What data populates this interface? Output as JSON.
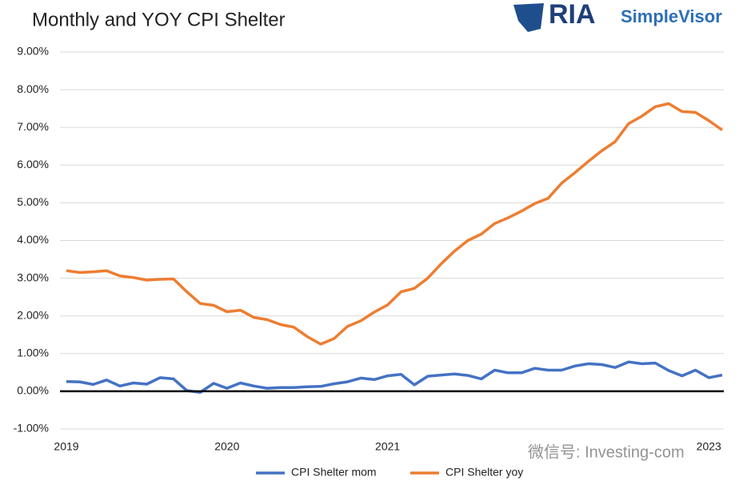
{
  "chart_data": {
    "type": "line",
    "title": "Monthly and YOY CPI Shelter",
    "logo": {
      "mark": "RIA",
      "name": "SimpleVisor"
    },
    "watermark": "微信号: Investing-com",
    "categories": [
      "2019",
      null,
      null,
      null,
      null,
      null,
      null,
      null,
      null,
      null,
      null,
      null,
      "2020",
      null,
      null,
      null,
      null,
      null,
      null,
      null,
      null,
      null,
      null,
      null,
      "2021",
      null,
      null,
      null,
      null,
      null,
      null,
      null,
      null,
      null,
      null,
      null,
      null,
      null,
      null,
      null,
      null,
      null,
      null,
      null,
      null,
      null,
      null,
      null,
      "2023",
      null
    ],
    "series": [
      {
        "name": "CPI Shelter mom",
        "color": "#4472c4",
        "values": [
          0.26,
          0.25,
          0.18,
          0.3,
          0.14,
          0.22,
          0.19,
          0.36,
          0.33,
          0.02,
          -0.03,
          0.21,
          0.08,
          0.22,
          0.14,
          0.08,
          0.1,
          0.1,
          0.12,
          0.13,
          0.2,
          0.25,
          0.35,
          0.31,
          0.41,
          0.45,
          0.17,
          0.4,
          0.43,
          0.46,
          0.42,
          0.33,
          0.56,
          0.49,
          0.49,
          0.61,
          0.56,
          0.56,
          0.67,
          0.73,
          0.71,
          0.63,
          0.78,
          0.73,
          0.75,
          0.55,
          0.41,
          0.56,
          0.36,
          0.43
        ]
      },
      {
        "name": "CPI Shelter yoy",
        "color": "#ed7d31",
        "values": [
          3.2,
          3.15,
          3.17,
          3.2,
          3.06,
          3.02,
          2.95,
          2.97,
          2.98,
          2.64,
          2.33,
          2.28,
          2.11,
          2.15,
          1.96,
          1.9,
          1.77,
          1.7,
          1.45,
          1.25,
          1.4,
          1.72,
          1.87,
          2.1,
          2.29,
          2.64,
          2.73,
          3.0,
          3.38,
          3.72,
          4.0,
          4.17,
          4.45,
          4.6,
          4.78,
          4.98,
          5.12,
          5.52,
          5.8,
          6.1,
          6.38,
          6.62,
          7.1,
          7.3,
          7.55,
          7.63,
          7.42,
          7.4,
          7.18,
          6.93
        ]
      }
    ],
    "ylim": [
      -1,
      9
    ],
    "yticks": [
      {
        "value": -1,
        "label": "-1.00%"
      },
      {
        "value": 0,
        "label": "0.00%"
      },
      {
        "value": 1,
        "label": "1.00%"
      },
      {
        "value": 2,
        "label": "2.00%"
      },
      {
        "value": 3,
        "label": "3.00%"
      },
      {
        "value": 4,
        "label": "4.00%"
      },
      {
        "value": 5,
        "label": "5.00%"
      },
      {
        "value": 6,
        "label": "6.00%"
      },
      {
        "value": 7,
        "label": "7.00%"
      },
      {
        "value": 8,
        "label": "8.00%"
      },
      {
        "value": 9,
        "label": "9.00%"
      }
    ],
    "grid": true,
    "legend": "bottom"
  }
}
